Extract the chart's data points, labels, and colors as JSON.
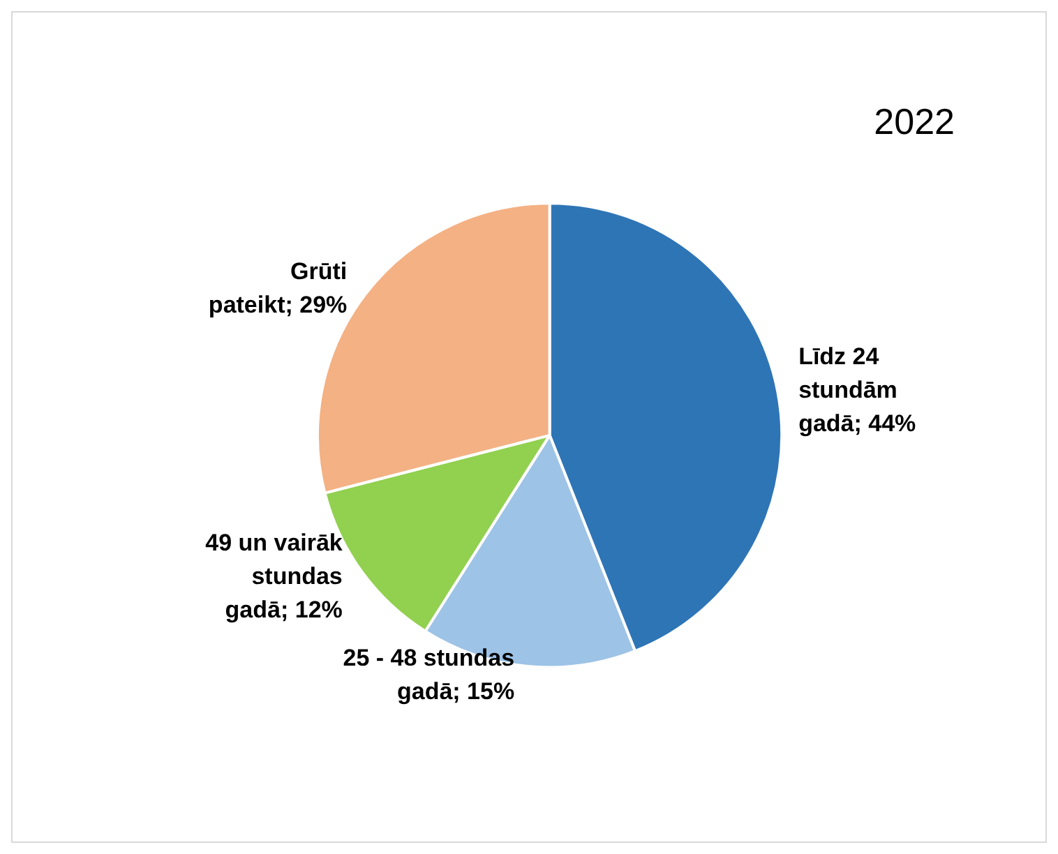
{
  "chart_data": {
    "type": "pie",
    "title": "2022",
    "categories": [
      "Līdz 24 stundām gadā",
      "25 - 48 stundas gadā",
      "49 un vairāk stundas gadā",
      "Grūti pateikt"
    ],
    "values": [
      44,
      15,
      12,
      29
    ],
    "value_labels": [
      "44%",
      "15%",
      "12%",
      "29%"
    ],
    "colors": [
      "#2e75b6",
      "#9dc3e6",
      "#92d050",
      "#f4b183"
    ],
    "legend": false
  }
}
